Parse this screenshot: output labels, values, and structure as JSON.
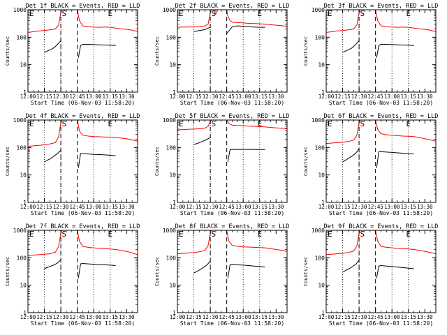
{
  "title_template": "Det {n}f BLACK = Events, RED = LLD",
  "xlabel": "Start Time (06-Nov-03 11:58:20)",
  "ylabel": "Counts/sec",
  "x_tick_labels": [
    "12:00",
    "12:15",
    "12:30",
    "12:45",
    "13:00",
    "13:15",
    "13:30"
  ],
  "y_tick_labels": [
    "1",
    "10",
    "100",
    "1000"
  ],
  "markers": {
    "s": "S",
    "e": "E"
  },
  "colors": {
    "events": "#000000",
    "lld": "#ff0000",
    "axes": "#000000"
  },
  "chart_data": [
    {
      "type": "line",
      "title": "Det 1f BLACK = Events, RED = LLD",
      "x_minutes_range": [
        0,
        100
      ],
      "ylim": [
        1,
        1000
      ],
      "y_scale": "log",
      "dotted_x": [
        15,
        30,
        60,
        75
      ],
      "dashed_x": [
        30,
        45
      ],
      "marker_s_x": 33,
      "marker_e_x": 75,
      "series": [
        {
          "name": "LLD",
          "x": [
            0,
            5,
            10,
            15,
            20,
            25,
            28,
            30,
            31
          ],
          "y": [
            150,
            158,
            170,
            175,
            185,
            200,
            280,
            800,
            1000
          ]
        },
        {
          "name": "LLD",
          "x": [
            45,
            47,
            50,
            55,
            60,
            65,
            70,
            75,
            80,
            85,
            90,
            95,
            100
          ],
          "y": [
            1000,
            400,
            260,
            240,
            235,
            230,
            235,
            230,
            215,
            200,
            195,
            180,
            160
          ]
        },
        {
          "name": "Events",
          "x": [
            15,
            18,
            21,
            24,
            27,
            30
          ],
          "y": [
            28,
            32,
            36,
            42,
            55,
            75
          ]
        },
        {
          "name": "Events",
          "x": [
            46,
            48,
            50,
            55,
            60,
            65,
            70,
            75,
            80
          ],
          "y": [
            18,
            50,
            55,
            55,
            54,
            53,
            52,
            51,
            50
          ]
        }
      ]
    },
    {
      "type": "line",
      "title": "Det 2f BLACK = Events, RED = LLD",
      "x_minutes_range": [
        0,
        100
      ],
      "ylim": [
        1,
        1000
      ],
      "y_scale": "log",
      "dotted_x": [
        15,
        30,
        60,
        75
      ],
      "dashed_x": [
        30,
        45
      ],
      "marker_s_x": 33,
      "marker_e_x": 75,
      "series": [
        {
          "name": "LLD",
          "x": [
            0,
            5,
            10,
            15,
            20,
            25,
            28,
            30,
            31
          ],
          "y": [
            230,
            235,
            235,
            240,
            245,
            255,
            300,
            800,
            1000
          ]
        },
        {
          "name": "LLD",
          "x": [
            33,
            34,
            35,
            36,
            37
          ],
          "y": [
            1000,
            850,
            700,
            850,
            1000
          ]
        },
        {
          "name": "LLD",
          "x": [
            45,
            46,
            48,
            50,
            55,
            60,
            65,
            70,
            75,
            80,
            85,
            90,
            95,
            100
          ],
          "y": [
            1000,
            600,
            400,
            350,
            340,
            330,
            320,
            315,
            310,
            300,
            285,
            275,
            265,
            250
          ]
        },
        {
          "name": "Events",
          "x": [
            15,
            20,
            25,
            30
          ],
          "y": [
            160,
            175,
            190,
            230
          ]
        },
        {
          "name": "Events",
          "x": [
            45,
            47,
            50,
            55,
            60,
            65,
            70,
            75,
            80
          ],
          "y": [
            140,
            170,
            240,
            260,
            250,
            240,
            235,
            230,
            230
          ]
        }
      ]
    },
    {
      "type": "line",
      "title": "Det 3f BLACK = Events, RED = LLD",
      "x_minutes_range": [
        0,
        100
      ],
      "ylim": [
        1,
        1000
      ],
      "y_scale": "log",
      "dotted_x": [
        15,
        30,
        60,
        75
      ],
      "dashed_x": [
        30,
        45
      ],
      "marker_s_x": 33,
      "marker_e_x": 75,
      "series": [
        {
          "name": "LLD",
          "x": [
            0,
            5,
            10,
            15,
            20,
            25,
            28,
            30,
            31
          ],
          "y": [
            150,
            158,
            170,
            175,
            185,
            200,
            280,
            800,
            1000
          ]
        },
        {
          "name": "LLD",
          "x": [
            45,
            47,
            50,
            55,
            60,
            65,
            70,
            75,
            80,
            85,
            90,
            95,
            100
          ],
          "y": [
            1000,
            400,
            260,
            240,
            235,
            230,
            235,
            230,
            215,
            200,
            195,
            180,
            160
          ]
        },
        {
          "name": "Events",
          "x": [
            15,
            18,
            21,
            24,
            27,
            30
          ],
          "y": [
            28,
            32,
            36,
            42,
            55,
            75
          ]
        },
        {
          "name": "Events",
          "x": [
            46,
            48,
            50,
            55,
            60,
            65,
            70,
            75,
            80
          ],
          "y": [
            18,
            50,
            55,
            55,
            54,
            53,
            52,
            51,
            50
          ]
        }
      ]
    },
    {
      "type": "line",
      "title": "Det 4f BLACK = Events, RED = LLD",
      "x_minutes_range": [
        0,
        100
      ],
      "ylim": [
        1,
        1000
      ],
      "y_scale": "log",
      "dotted_x": [
        15,
        30,
        60,
        75
      ],
      "dashed_x": [
        30,
        45
      ],
      "marker_s_x": 33,
      "marker_e_x": 75,
      "series": [
        {
          "name": "LLD",
          "x": [
            0,
            5,
            10,
            15,
            20,
            25,
            28,
            30,
            31
          ],
          "y": [
            110,
            115,
            120,
            125,
            135,
            150,
            250,
            800,
            1000
          ]
        },
        {
          "name": "LLD",
          "x": [
            45,
            47,
            50,
            55,
            60,
            65,
            70,
            75,
            80,
            85,
            90,
            95,
            100
          ],
          "y": [
            1000,
            400,
            280,
            260,
            250,
            245,
            240,
            240,
            230,
            220,
            210,
            190,
            170
          ]
        },
        {
          "name": "Events",
          "x": [
            15,
            18,
            21,
            24,
            27,
            30
          ],
          "y": [
            30,
            35,
            40,
            50,
            60,
            80
          ]
        },
        {
          "name": "Events",
          "x": [
            46,
            48,
            50,
            55,
            60,
            65,
            70,
            75,
            80
          ],
          "y": [
            18,
            60,
            60,
            58,
            56,
            55,
            54,
            52,
            50
          ]
        }
      ]
    },
    {
      "type": "line",
      "title": "Det 5f BLACK = Events, RED = LLD",
      "x_minutes_range": [
        0,
        100
      ],
      "ylim": [
        1,
        1000
      ],
      "y_scale": "log",
      "dotted_x": [
        15,
        30,
        60,
        75
      ],
      "dashed_x": [
        30,
        45
      ],
      "marker_s_x": 33,
      "marker_e_x": 75,
      "series": [
        {
          "name": "LLD",
          "x": [
            0,
            5,
            10,
            15,
            20,
            25,
            28,
            30,
            31
          ],
          "y": [
            440,
            450,
            460,
            470,
            480,
            500,
            600,
            900,
            1000
          ]
        },
        {
          "name": "LLD",
          "x": [
            45,
            47,
            50,
            55,
            60,
            65,
            70,
            75,
            80,
            85,
            90,
            95,
            100
          ],
          "y": [
            1000,
            750,
            650,
            630,
            620,
            600,
            590,
            580,
            560,
            540,
            520,
            500,
            480
          ]
        },
        {
          "name": "Events",
          "x": [
            15,
            18,
            21,
            24,
            27,
            30
          ],
          "y": [
            130,
            140,
            155,
            175,
            200,
            230
          ]
        },
        {
          "name": "Events",
          "x": [
            46,
            48,
            50,
            55,
            60,
            65,
            70,
            75,
            80
          ],
          "y": [
            30,
            85,
            85,
            85,
            85,
            85,
            85,
            84,
            85
          ]
        }
      ]
    },
    {
      "type": "line",
      "title": "Det 6f BLACK = Events, RED = LLD",
      "x_minutes_range": [
        0,
        100
      ],
      "ylim": [
        1,
        1000
      ],
      "y_scale": "log",
      "dotted_x": [
        15,
        30,
        60,
        75
      ],
      "dashed_x": [
        30,
        45
      ],
      "marker_s_x": 33,
      "marker_e_x": 75,
      "series": [
        {
          "name": "LLD",
          "x": [
            0,
            5,
            10,
            15,
            20,
            25,
            28,
            30,
            31
          ],
          "y": [
            140,
            145,
            150,
            155,
            165,
            185,
            280,
            800,
            1000
          ]
        },
        {
          "name": "LLD",
          "x": [
            45,
            47,
            50,
            55,
            60,
            65,
            70,
            75,
            80,
            85,
            90,
            95,
            100
          ],
          "y": [
            1000,
            450,
            320,
            290,
            280,
            270,
            260,
            255,
            250,
            230,
            210,
            190,
            170
          ]
        },
        {
          "name": "Events",
          "x": [
            15,
            18,
            21,
            24,
            27,
            30
          ],
          "y": [
            30,
            35,
            42,
            50,
            62,
            90
          ]
        },
        {
          "name": "Events",
          "x": [
            46,
            48,
            50,
            55,
            60,
            65,
            70,
            75,
            80
          ],
          "y": [
            18,
            70,
            70,
            68,
            66,
            64,
            62,
            60,
            58
          ]
        }
      ]
    },
    {
      "type": "line",
      "title": "Det 7f BLACK = Events, RED = LLD",
      "x_minutes_range": [
        0,
        100
      ],
      "ylim": [
        1,
        1000
      ],
      "y_scale": "log",
      "dotted_x": [
        15,
        30,
        60,
        75
      ],
      "dashed_x": [
        30,
        45
      ],
      "marker_s_x": 33,
      "marker_e_x": 75,
      "series": [
        {
          "name": "LLD",
          "x": [
            0,
            5,
            10,
            15,
            20,
            25,
            28,
            30,
            31
          ],
          "y": [
            120,
            125,
            130,
            135,
            140,
            160,
            260,
            800,
            1000
          ]
        },
        {
          "name": "LLD",
          "x": [
            45,
            47,
            50,
            55,
            60,
            65,
            70,
            75,
            80,
            85,
            90,
            95,
            100
          ],
          "y": [
            1000,
            400,
            260,
            240,
            230,
            220,
            215,
            210,
            200,
            185,
            170,
            150,
            130
          ]
        },
        {
          "name": "Events",
          "x": [
            15,
            18,
            21,
            24,
            27,
            30
          ],
          "y": [
            40,
            45,
            50,
            55,
            65,
            85
          ]
        },
        {
          "name": "Events",
          "x": [
            46,
            48,
            50,
            55,
            60,
            65,
            70,
            75,
            80
          ],
          "y": [
            18,
            60,
            62,
            60,
            58,
            56,
            55,
            54,
            52
          ]
        }
      ]
    },
    {
      "type": "line",
      "title": "Det 8f BLACK = Events, RED = LLD",
      "x_minutes_range": [
        0,
        100
      ],
      "ylim": [
        1,
        1000
      ],
      "y_scale": "log",
      "dotted_x": [
        15,
        30,
        60,
        75
      ],
      "dashed_x": [
        30,
        45
      ],
      "marker_s_x": 33,
      "marker_e_x": 75,
      "series": [
        {
          "name": "LLD",
          "x": [
            0,
            5,
            10,
            15,
            20,
            25,
            28,
            30,
            31
          ],
          "y": [
            140,
            145,
            150,
            155,
            165,
            185,
            280,
            800,
            1000
          ]
        },
        {
          "name": "LLD",
          "x": [
            45,
            47,
            50,
            55,
            60,
            65,
            70,
            75,
            80,
            85,
            90,
            95,
            100
          ],
          "y": [
            1000,
            400,
            280,
            260,
            250,
            245,
            240,
            235,
            230,
            215,
            200,
            185,
            170
          ]
        },
        {
          "name": "Events",
          "x": [
            15,
            18,
            21,
            24,
            27,
            30
          ],
          "y": [
            28,
            32,
            38,
            45,
            55,
            75
          ]
        },
        {
          "name": "Events",
          "x": [
            46,
            48,
            50,
            55,
            60,
            65,
            70,
            75,
            80
          ],
          "y": [
            18,
            55,
            56,
            55,
            54,
            52,
            50,
            48,
            46
          ]
        }
      ]
    },
    {
      "type": "line",
      "title": "Det 9f BLACK = Events, RED = LLD",
      "x_minutes_range": [
        0,
        100
      ],
      "ylim": [
        1,
        1000
      ],
      "y_scale": "log",
      "dotted_x": [
        15,
        30,
        60,
        75
      ],
      "dashed_x": [
        30,
        45
      ],
      "marker_s_x": 33,
      "marker_e_x": 75,
      "series": [
        {
          "name": "LLD",
          "x": [
            0,
            5,
            10,
            15,
            20,
            25,
            28,
            30,
            31
          ],
          "y": [
            130,
            135,
            140,
            145,
            155,
            175,
            270,
            800,
            1000
          ]
        },
        {
          "name": "LLD",
          "x": [
            45,
            47,
            50,
            55,
            60,
            65,
            70,
            75,
            80,
            85,
            90,
            95,
            100
          ],
          "y": [
            1000,
            400,
            260,
            240,
            230,
            220,
            215,
            210,
            200,
            185,
            170,
            155,
            140
          ]
        },
        {
          "name": "Events",
          "x": [
            15,
            18,
            21,
            24,
            27,
            30
          ],
          "y": [
            30,
            35,
            40,
            48,
            58,
            80
          ]
        },
        {
          "name": "Events",
          "x": [
            46,
            48,
            50,
            55,
            60,
            65,
            70,
            75,
            80
          ],
          "y": [
            18,
            50,
            52,
            50,
            48,
            46,
            44,
            42,
            40
          ]
        }
      ]
    }
  ]
}
